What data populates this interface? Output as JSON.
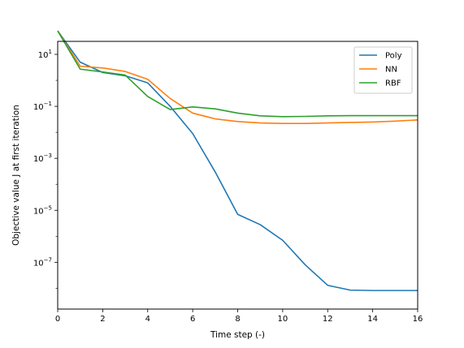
{
  "chart_data": {
    "type": "line",
    "xlabel": "Time step (-)",
    "ylabel": "Objective value J at first iteration",
    "xlim": [
      0,
      16
    ],
    "ylim_exponent": [
      -8.8,
      1.5
    ],
    "yscale": "log",
    "xticks": [
      0,
      2,
      4,
      6,
      8,
      10,
      12,
      14,
      16
    ],
    "xtick_labels": [
      "0",
      "2",
      "4",
      "6",
      "8",
      "10",
      "12",
      "14",
      "16"
    ],
    "ytick_exponents": [
      1,
      -1,
      -3,
      -5,
      -7
    ],
    "ytick_base": "10",
    "ytick_sup": [
      "1",
      "−1",
      "−3",
      "−5",
      "−7"
    ],
    "grid": false,
    "legend_position": "top-right",
    "x": [
      0,
      1,
      2,
      3,
      4,
      5,
      6,
      7,
      8,
      9,
      10,
      11,
      12,
      13,
      14,
      15,
      16
    ],
    "series": [
      {
        "name": "Poly",
        "color": "#1f77b4",
        "values": [
          80,
          5,
          2,
          1.5,
          0.8,
          0.1,
          0.009,
          0.0003,
          7e-06,
          2.8e-06,
          7e-07,
          8e-08,
          1.3e-08,
          8.5e-09,
          8.2e-09,
          8.2e-09,
          8.2e-09
        ]
      },
      {
        "name": "NN",
        "color": "#ff7f0e",
        "values": [
          80,
          3.5,
          3,
          2.2,
          1.1,
          0.2,
          0.055,
          0.033,
          0.026,
          0.023,
          0.022,
          0.022,
          0.023,
          0.024,
          0.025,
          0.027,
          0.03
        ]
      },
      {
        "name": "RBF",
        "color": "#2ca02c",
        "values": [
          80,
          2.7,
          2.1,
          1.6,
          0.24,
          0.075,
          0.095,
          0.08,
          0.055,
          0.043,
          0.04,
          0.041,
          0.043,
          0.044,
          0.044,
          0.044,
          0.044
        ]
      }
    ]
  }
}
